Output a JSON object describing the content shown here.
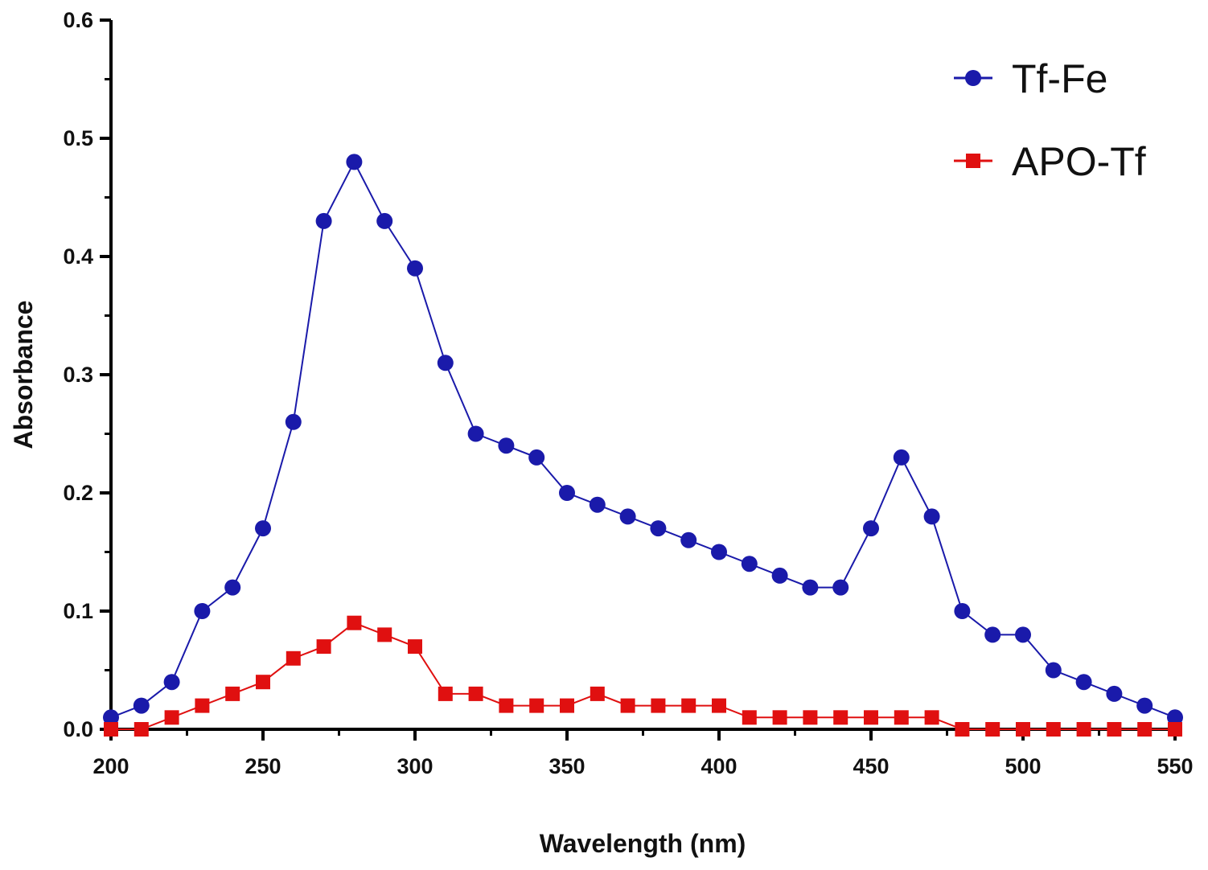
{
  "chart_data": {
    "type": "line",
    "title": "",
    "xlabel": "Wavelength (nm)",
    "ylabel": "Absorbance",
    "xlim": [
      200,
      550
    ],
    "ylim": [
      0,
      0.6
    ],
    "x_ticks": [
      "200",
      "250",
      "300",
      "350",
      "400",
      "450",
      "500",
      "550"
    ],
    "x_tick_values": [
      200,
      250,
      300,
      350,
      400,
      450,
      500,
      550
    ],
    "y_ticks": [
      "0.0",
      "0.1",
      "0.2",
      "0.3",
      "0.4",
      "0.5",
      "0.6"
    ],
    "y_tick_values": [
      0,
      0.1,
      0.2,
      0.3,
      0.4,
      0.5,
      0.6
    ],
    "grid": false,
    "legend_position": "top-right",
    "x": [
      200,
      210,
      220,
      230,
      240,
      250,
      260,
      270,
      280,
      290,
      300,
      310,
      320,
      330,
      340,
      350,
      360,
      370,
      380,
      390,
      400,
      410,
      420,
      430,
      440,
      450,
      460,
      470,
      480,
      490,
      500,
      510,
      520,
      530,
      540,
      550
    ],
    "series": [
      {
        "name": "Tf-Fe",
        "color": "#1a1aaa",
        "marker": "circle",
        "values": [
          0.01,
          0.02,
          0.04,
          0.1,
          0.12,
          0.17,
          0.26,
          0.43,
          0.48,
          0.43,
          0.39,
          0.31,
          0.25,
          0.24,
          0.23,
          0.2,
          0.19,
          0.18,
          0.17,
          0.16,
          0.15,
          0.14,
          0.13,
          0.12,
          0.12,
          0.17,
          0.23,
          0.18,
          0.1,
          0.08,
          0.08,
          0.05,
          0.04,
          0.03,
          0.02,
          0.01
        ]
      },
      {
        "name": "APO-Tf",
        "color": "#e01010",
        "marker": "square",
        "values": [
          0.0,
          0.0,
          0.01,
          0.02,
          0.03,
          0.04,
          0.06,
          0.07,
          0.09,
          0.08,
          0.07,
          0.03,
          0.03,
          0.02,
          0.02,
          0.02,
          0.03,
          0.02,
          0.02,
          0.02,
          0.02,
          0.01,
          0.01,
          0.01,
          0.01,
          0.01,
          0.01,
          0.01,
          0.0,
          0.0,
          0.0,
          0.0,
          0.0,
          0.0,
          0.0,
          0.0
        ]
      }
    ]
  }
}
